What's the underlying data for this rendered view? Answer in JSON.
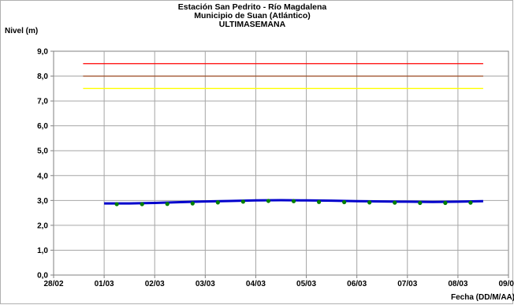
{
  "chart_data": {
    "type": "line",
    "title_lines": [
      "Estación San Pedrito - Río Magdalena",
      "Municipio de Suan (Atlántico)",
      "ULTIMASEMANA"
    ],
    "ylabel": "Nivel (m)",
    "xlabel": "Fecha (DD/M/AA)",
    "x_tick_labels": [
      "28/02",
      "01/03",
      "02/03",
      "03/03",
      "04/03",
      "05/03",
      "06/03",
      "07/03",
      "08/03",
      "09/03"
    ],
    "xlim": [
      "28/02",
      "09/03"
    ],
    "ylim": [
      0,
      9
    ],
    "y_ticks": [
      "0,0",
      "1,0",
      "2,0",
      "3,0",
      "4,0",
      "5,0",
      "6,0",
      "7,0",
      "8,0",
      "9,0"
    ],
    "grid": true,
    "thresholds": [
      {
        "value": 8.5,
        "color": "#ff0000"
      },
      {
        "value": 8.0,
        "color": "#a0522d"
      },
      {
        "value": 7.5,
        "color": "#ffff00"
      }
    ],
    "threshold_x_range": [
      "28/02 14:00",
      "08/03 12:00"
    ],
    "series": [
      {
        "style": "line",
        "color": "#0000cc",
        "x": [
          "01/03 00:00",
          "01/03 12:00",
          "02/03 00:00",
          "02/03 12:00",
          "03/03 00:00",
          "03/03 12:00",
          "04/03 00:00",
          "04/03 12:00",
          "05/03 00:00",
          "05/03 12:00",
          "06/03 00:00",
          "06/03 12:00",
          "07/03 00:00",
          "07/03 12:00",
          "08/03 00:00",
          "08/03 12:00"
        ],
        "y": [
          2.88,
          2.88,
          2.9,
          2.93,
          2.96,
          2.98,
          3.0,
          3.01,
          3.0,
          2.99,
          2.97,
          2.96,
          2.95,
          2.94,
          2.95,
          2.97
        ]
      },
      {
        "style": "points",
        "color": "#008000",
        "x": [
          "01/03 06:00",
          "01/03 18:00",
          "02/03 06:00",
          "02/03 18:00",
          "03/03 06:00",
          "03/03 18:00",
          "04/03 06:00",
          "04/03 18:00",
          "05/03 06:00",
          "05/03 18:00",
          "06/03 06:00",
          "06/03 18:00",
          "07/03 06:00",
          "07/03 18:00",
          "08/03 06:00"
        ],
        "y": [
          2.85,
          2.85,
          2.86,
          2.88,
          2.92,
          2.95,
          2.98,
          2.97,
          2.94,
          2.93,
          2.92,
          2.91,
          2.9,
          2.9,
          2.91
        ]
      }
    ]
  }
}
